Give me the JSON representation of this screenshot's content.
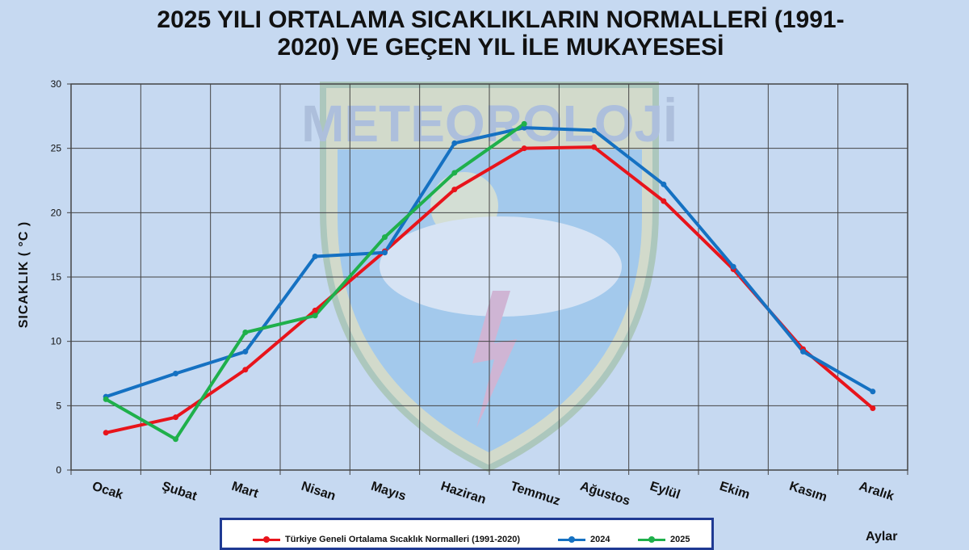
{
  "chart_data": {
    "type": "line",
    "title_line1": "2025 YILI ORTALAMA SICAKLIKLARIN NORMALLERİ (1991-",
    "title_line2": "2020) VE GEÇEN YIL İLE MUKAYESESİ",
    "ylabel": "SICAKLIK ( °C )",
    "xlabel": "Aylar",
    "ylim": [
      0,
      30
    ],
    "yticks": [
      0,
      5,
      10,
      15,
      20,
      25,
      30
    ],
    "grid": true,
    "categories": [
      "Ocak",
      "Şubat",
      "Mart",
      "Nisan",
      "Mayıs",
      "Haziran",
      "Temmuz",
      "Ağustos",
      "Eylül",
      "Ekim",
      "Kasım",
      "Aralık"
    ],
    "series": [
      {
        "name": "Türkiye Geneli Ortalama Sıcaklık Normalleri (1991-2020)",
        "color": "#e8141b",
        "values": [
          2.9,
          4.1,
          7.8,
          12.4,
          17.0,
          21.8,
          25.0,
          25.1,
          20.9,
          15.6,
          9.4,
          4.8
        ]
      },
      {
        "name": "2024",
        "color": "#1571c2",
        "values": [
          5.7,
          7.5,
          9.2,
          16.6,
          16.9,
          25.4,
          26.6,
          26.4,
          22.2,
          15.8,
          9.2,
          6.1
        ]
      },
      {
        "name": "2025",
        "color": "#1fb04b",
        "values": [
          5.5,
          2.4,
          10.7,
          12.0,
          18.1,
          23.1,
          26.9,
          null,
          null,
          null,
          null,
          null
        ]
      }
    ],
    "legend_position": "bottom"
  }
}
